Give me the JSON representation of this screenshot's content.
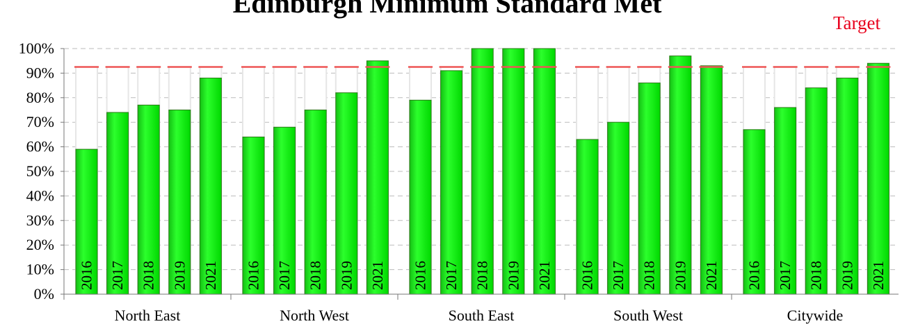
{
  "chart_data": {
    "type": "bar",
    "title": "Edinburgh Minimum Standard Met",
    "target_label": "Target",
    "target_value": 92.5,
    "ylim": [
      0,
      100
    ],
    "yticks": [
      "0%",
      "10%",
      "20%",
      "30%",
      "40%",
      "50%",
      "60%",
      "70%",
      "80%",
      "90%",
      "100%"
    ],
    "grid": true,
    "groups": [
      {
        "name": "North East",
        "bars": [
          {
            "year": "2016",
            "value": 59
          },
          {
            "year": "2017",
            "value": 74
          },
          {
            "year": "2018",
            "value": 77
          },
          {
            "year": "2019",
            "value": 75
          },
          {
            "year": "2021",
            "value": 88
          }
        ]
      },
      {
        "name": "North West",
        "bars": [
          {
            "year": "2016",
            "value": 64
          },
          {
            "year": "2017",
            "value": 68
          },
          {
            "year": "2018",
            "value": 75
          },
          {
            "year": "2019",
            "value": 82
          },
          {
            "year": "2021",
            "value": 95
          }
        ]
      },
      {
        "name": "South East",
        "bars": [
          {
            "year": "2016",
            "value": 79
          },
          {
            "year": "2017",
            "value": 91
          },
          {
            "year": "2018",
            "value": 100
          },
          {
            "year": "2019",
            "value": 100
          },
          {
            "year": "2021",
            "value": 100
          }
        ]
      },
      {
        "name": "South West",
        "bars": [
          {
            "year": "2016",
            "value": 63
          },
          {
            "year": "2017",
            "value": 70
          },
          {
            "year": "2018",
            "value": 86
          },
          {
            "year": "2019",
            "value": 97
          },
          {
            "year": "2021",
            "value": 93
          }
        ]
      },
      {
        "name": "Citywide",
        "bars": [
          {
            "year": "2016",
            "value": 67
          },
          {
            "year": "2017",
            "value": 76
          },
          {
            "year": "2018",
            "value": 84
          },
          {
            "year": "2019",
            "value": 88
          },
          {
            "year": "2021",
            "value": 94
          }
        ]
      }
    ],
    "colors": {
      "bar": "#00ee00",
      "bar_edge": "#2a7a16",
      "target": "#ee5555",
      "ghost": "#e6e6e6",
      "grid": "#bbbbbb"
    }
  }
}
